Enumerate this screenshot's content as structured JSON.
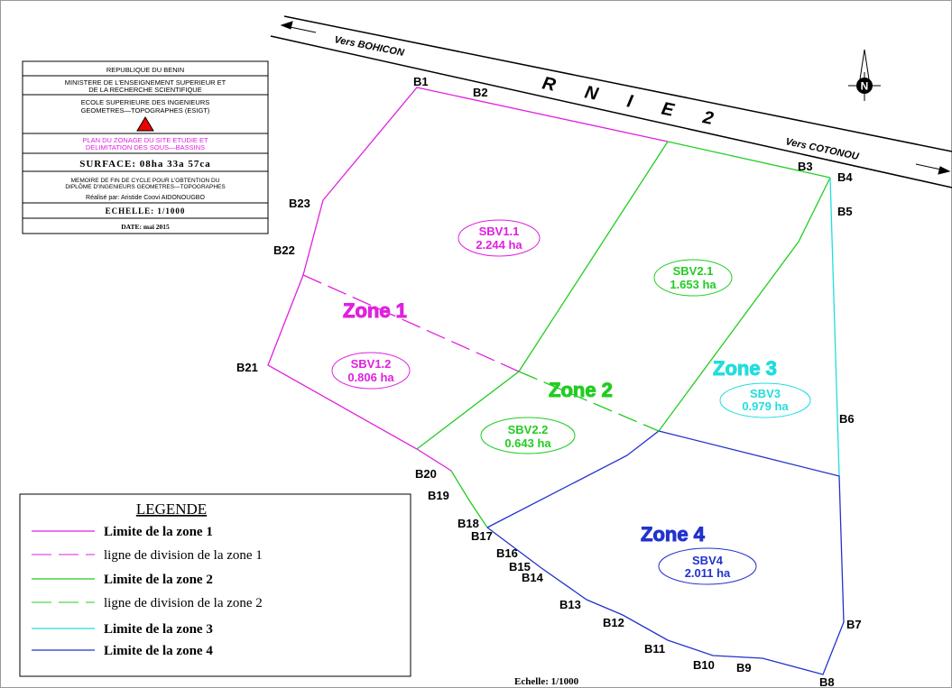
{
  "road": {
    "left": "Vers BOHICON",
    "name": "R N I E 2",
    "right": "Vers COTONOU"
  },
  "north": "N",
  "title_block": {
    "country": "REPUBLIQUE DU BENIN",
    "ministry": [
      "MINISTERE DE L'ENSEIGNEMENT SUPERIEUR ET",
      "DE LA RECHERCHE SCIENTIFIQUE"
    ],
    "school": [
      "ECOLE SUPERIEURE DES INGENIEURS",
      "GEOMETRES—TOPOGRAPHES (ESIGT)"
    ],
    "plan": [
      "PLAN DU ZONAGE DU SITE ETUDIE ET",
      "DELIMITATION DES SOUS—BASSINS"
    ],
    "surface": "SURFACE: 08ha 33a 57ca",
    "memoire": [
      "MEMOIRE DE FIN DE CYCLE POUR L'OBTENTION DU",
      "DIPLÔME D'INGENIEURS GEOMETRES—TOPOGRAPHES"
    ],
    "author": "Réalisé par: Aristide Coovi AIDONOUGBO",
    "scale": "ECHELLE: 1/1000",
    "date": "DATE: mai 2015"
  },
  "points": [
    "B1",
    "B2",
    "B3",
    "B4",
    "B5",
    "B6",
    "B7",
    "B8",
    "B9",
    "B10",
    "B11",
    "B12",
    "B13",
    "B14",
    "B15",
    "B16",
    "B17",
    "B18",
    "B19",
    "B20",
    "B21",
    "B22",
    "B23"
  ],
  "zones": [
    "Zone 1",
    "Zone 2",
    "Zone 3",
    "Zone 4"
  ],
  "subbasins": [
    {
      "name": "SBV1.1",
      "area": "2.244 ha"
    },
    {
      "name": "SBV1.2",
      "area": "0.806 ha"
    },
    {
      "name": "SBV2.1",
      "area": "1.653 ha"
    },
    {
      "name": "SBV2.2",
      "area": "0.643 ha"
    },
    {
      "name": "SBV3",
      "area": "0.979 ha"
    },
    {
      "name": "SBV4",
      "area": "2.011 ha"
    }
  ],
  "legend": {
    "title": "LEGENDE",
    "items": [
      "Limite de la zone 1",
      "ligne de division de la zone 1",
      "Limite de la zone 2",
      "ligne de division de la zone 2",
      "Limite de la zone 3",
      "Limite de la zone 4"
    ]
  },
  "scale_note": "Echelle: 1/1000"
}
